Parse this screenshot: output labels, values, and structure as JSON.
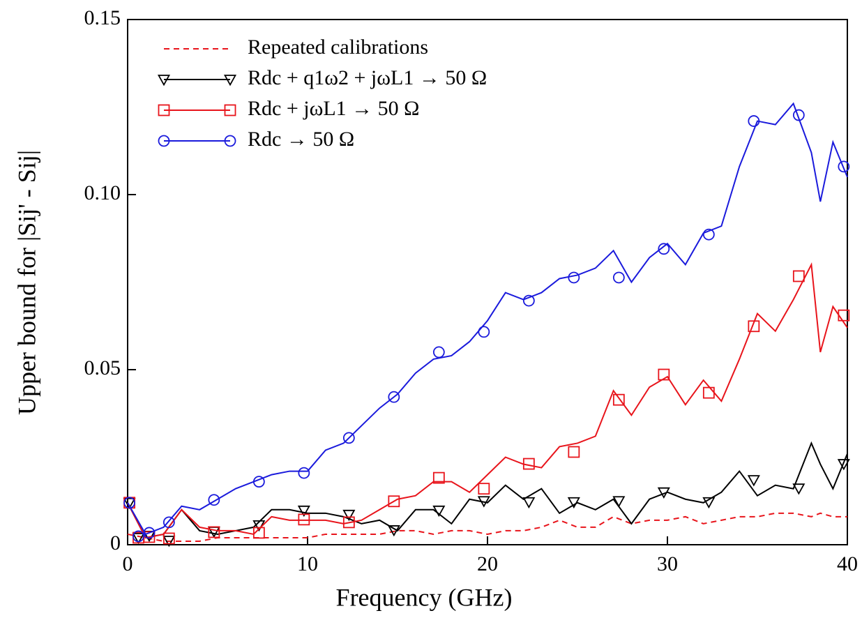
{
  "chart_data": {
    "type": "line",
    "xlabel": "Frequency (GHz)",
    "ylabel": "Upper bound for |Sij' - Sij|",
    "x": [
      0,
      1,
      2,
      3,
      4,
      5,
      6,
      7,
      8,
      9,
      10,
      11,
      12,
      13,
      14,
      15,
      16,
      17,
      18,
      19,
      20,
      21,
      22,
      23,
      24,
      25,
      26,
      27,
      28,
      29,
      30,
      31,
      32,
      33,
      34,
      35,
      36,
      37,
      38,
      38.5,
      39.2,
      40
    ],
    "marker_x": [
      0.1,
      0.6,
      1.2,
      2.3,
      4.8,
      7.3,
      9.8,
      12.3,
      14.8,
      17.3,
      19.8,
      22.3,
      24.8,
      27.3,
      29.8,
      32.3,
      34.8,
      37.3,
      39.8
    ],
    "series": [
      {
        "name": "Repeated calibrations",
        "color": "#e8141b",
        "line_style": "dash",
        "values": [
          0.003,
          0.002,
          0.001,
          0.001,
          0.001,
          0.002,
          0.002,
          0.002,
          0.002,
          0.002,
          0.002,
          0.003,
          0.003,
          0.003,
          0.003,
          0.004,
          0.004,
          0.003,
          0.004,
          0.004,
          0.003,
          0.004,
          0.004,
          0.005,
          0.007,
          0.005,
          0.005,
          0.008,
          0.006,
          0.007,
          0.007,
          0.008,
          0.006,
          0.007,
          0.008,
          0.008,
          0.009,
          0.009,
          0.008,
          0.009,
          0.008,
          0.008
        ]
      },
      {
        "name": "Rdc + q1ω2 + jωL1 → 50 Ω",
        "color": "#000000",
        "line_style": "solid",
        "marker": "triangle-down",
        "values": [
          0.012,
          0.002,
          0.003,
          0.01,
          0.004,
          0.003,
          0.004,
          0.005,
          0.01,
          0.01,
          0.009,
          0.009,
          0.008,
          0.006,
          0.007,
          0.004,
          0.01,
          0.01,
          0.006,
          0.013,
          0.012,
          0.017,
          0.013,
          0.016,
          0.009,
          0.012,
          0.01,
          0.013,
          0.006,
          0.013,
          0.015,
          0.013,
          0.012,
          0.015,
          0.021,
          0.014,
          0.017,
          0.016,
          0.029,
          0.023,
          0.016,
          0.026
        ],
        "marker_values": [
          0.012,
          0.002,
          0.0026,
          0.0012,
          0.0038,
          0.0056,
          0.0098,
          0.0086,
          0.0042,
          0.0098,
          0.0125,
          0.0122,
          0.0122,
          0.0125,
          0.015,
          0.0122,
          0.0185,
          0.0161,
          0.0231
        ]
      },
      {
        "name": "Rdc + jωL1 → 50 Ω",
        "color": "#e8141b",
        "line_style": "solid",
        "marker": "square",
        "values": [
          0.012,
          0.002,
          0.003,
          0.01,
          0.005,
          0.004,
          0.004,
          0.003,
          0.008,
          0.007,
          0.007,
          0.007,
          0.006,
          0.007,
          0.01,
          0.013,
          0.014,
          0.018,
          0.018,
          0.015,
          0.02,
          0.025,
          0.023,
          0.022,
          0.028,
          0.029,
          0.031,
          0.044,
          0.037,
          0.045,
          0.048,
          0.04,
          0.047,
          0.041,
          0.053,
          0.066,
          0.061,
          0.07,
          0.08,
          0.055,
          0.068,
          0.062
        ],
        "marker_values": [
          0.012,
          0.002,
          0.0022,
          0.0018,
          0.0036,
          0.0034,
          0.0072,
          0.0064,
          0.0124,
          0.0191,
          0.016,
          0.0231,
          0.0265,
          0.0414,
          0.0486,
          0.0434,
          0.0624,
          0.0767,
          0.0655
        ]
      },
      {
        "name": "Rdc → 50 Ω",
        "color": "#1a1adc",
        "line_style": "solid",
        "marker": "circle",
        "values": [
          0.012,
          0.003,
          0.005,
          0.011,
          0.01,
          0.013,
          0.016,
          0.018,
          0.02,
          0.021,
          0.021,
          0.027,
          0.029,
          0.034,
          0.039,
          0.043,
          0.049,
          0.053,
          0.054,
          0.058,
          0.064,
          0.072,
          0.07,
          0.072,
          0.076,
          0.077,
          0.079,
          0.084,
          0.075,
          0.082,
          0.086,
          0.08,
          0.089,
          0.091,
          0.108,
          0.121,
          0.12,
          0.126,
          0.112,
          0.098,
          0.115,
          0.105
        ],
        "marker_values": [
          0.012,
          0.0024,
          0.0034,
          0.0064,
          0.0128,
          0.018,
          0.0205,
          0.0305,
          0.0422,
          0.055,
          0.0608,
          0.0697,
          0.0763,
          0.0763,
          0.0845,
          0.0886,
          0.121,
          0.1227,
          0.108
        ]
      }
    ],
    "xlim": [
      0,
      40
    ],
    "xticks": [
      0,
      10,
      20,
      30,
      40
    ],
    "ylim": [
      0,
      0.15
    ],
    "yticks": [
      0,
      0.05,
      {
        "value": 0.1,
        "label": "0.10"
      },
      0.15
    ],
    "legend": "upper left",
    "grid": false
  }
}
